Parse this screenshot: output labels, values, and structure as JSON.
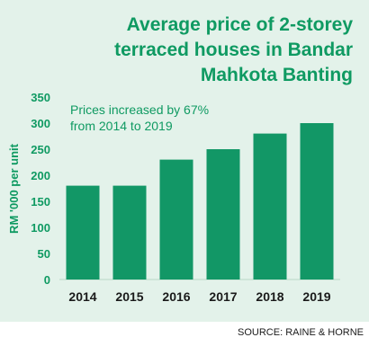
{
  "title_lines": [
    "Average price of 2-storey",
    "terraced houses in Bandar",
    "Mahkota Banting"
  ],
  "source": "SOURCE: RAINE & HORNE",
  "colors": {
    "bar": "#129766",
    "background_panel": "#e3f2ea",
    "accent_text": "#0f9a62"
  },
  "chart_data": {
    "type": "bar",
    "title": "Average price of 2-storey terraced houses in Bandar Mahkota Banting",
    "categories": [
      "2014",
      "2015",
      "2016",
      "2017",
      "2018",
      "2019"
    ],
    "values": [
      180,
      180,
      230,
      250,
      280,
      300
    ],
    "ylabel": "RM '000 per unit",
    "xlabel": "",
    "ylim": [
      0,
      350
    ],
    "yticks": [
      0,
      50,
      100,
      150,
      200,
      250,
      300,
      350
    ],
    "annotation_lines": [
      "Prices increased by 67%",
      "from 2014 to 2019"
    ],
    "grid": false,
    "legend": "none"
  }
}
